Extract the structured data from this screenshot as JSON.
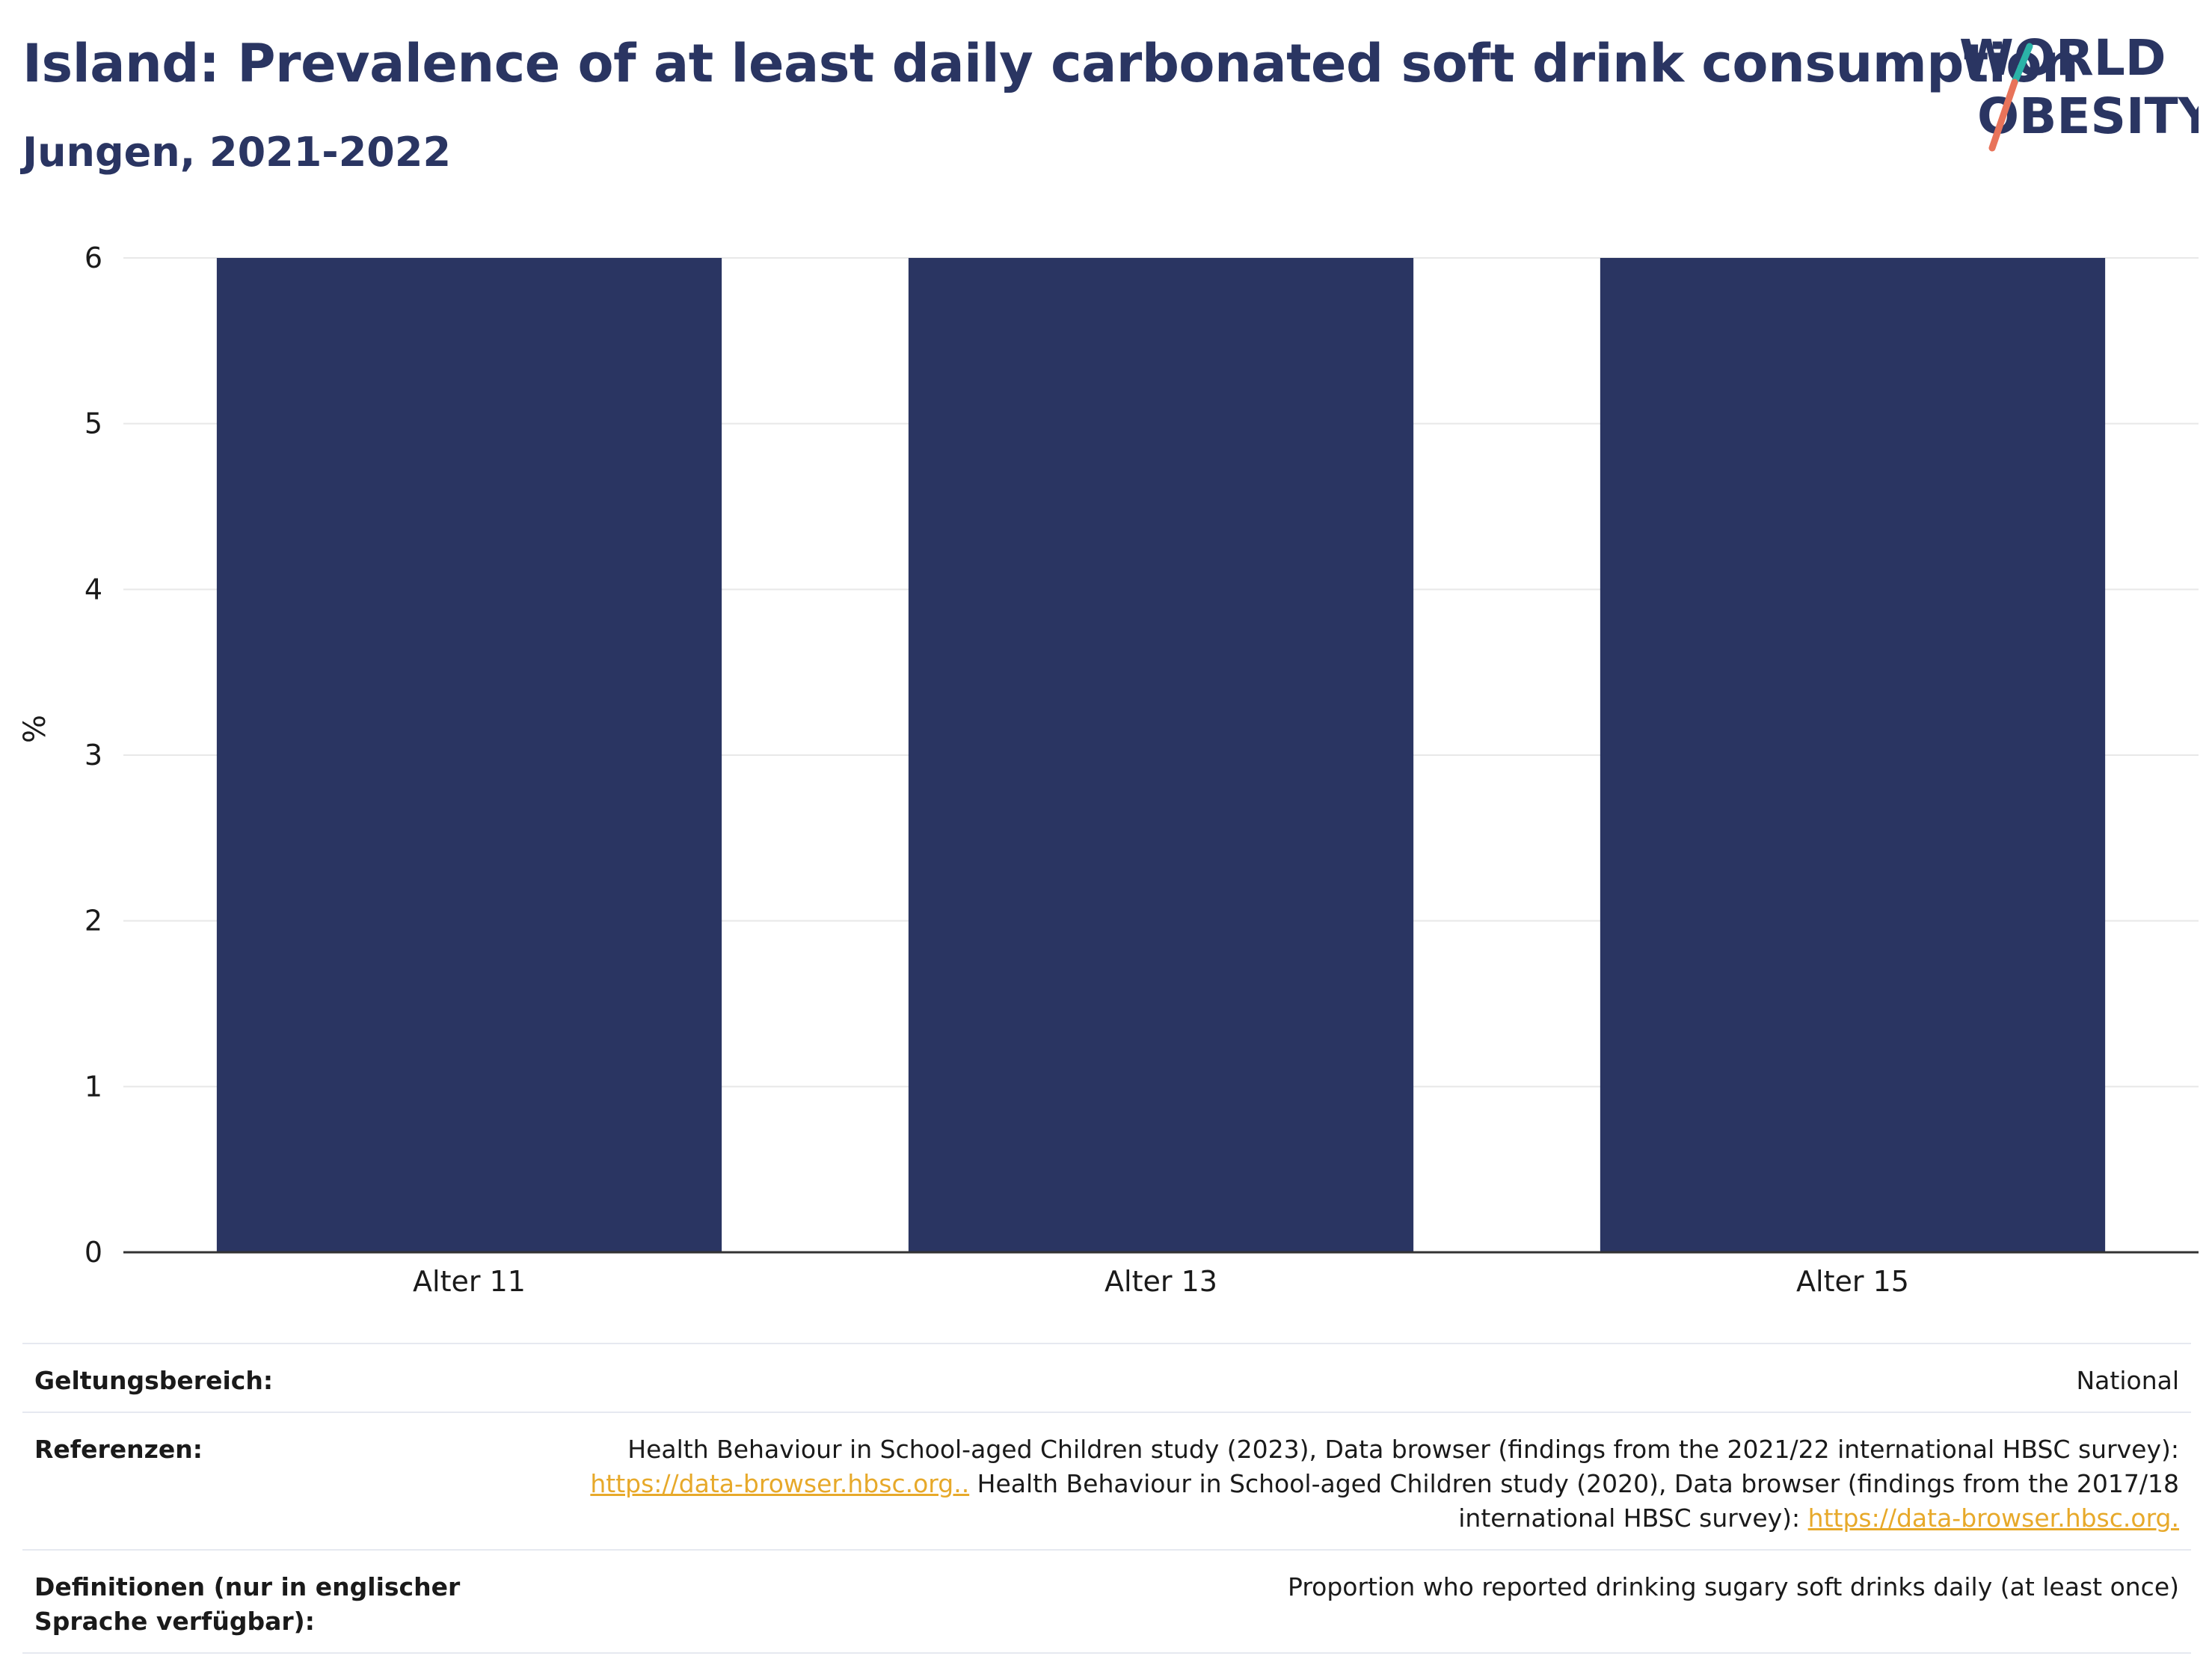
{
  "header": {
    "title": "Island: Prevalence of at least daily carbonated soft drink consumption",
    "subtitle": "Jungen, 2021-2022"
  },
  "logo": {
    "line1": "WORLD",
    "line2": "OBESITY",
    "slash_color_top": "#2bb3a8",
    "slash_color_bottom": "#e8735a"
  },
  "colors": {
    "bar": "#2a3562",
    "grid": "#e8e8e8",
    "axis": "#333333",
    "link": "#e7a92a"
  },
  "chart_data": {
    "type": "bar",
    "categories": [
      "Alter 11",
      "Alter 13",
      "Alter 15"
    ],
    "values": [
      6,
      6,
      6
    ],
    "title": "Island: Prevalence of at least daily carbonated soft drink consumption",
    "subtitle": "Jungen, 2021-2022",
    "xlabel": "",
    "ylabel": "%",
    "ylim": [
      0,
      6
    ],
    "yticks": [
      "0",
      "1",
      "2",
      "3",
      "4",
      "5",
      "6"
    ],
    "grid": true
  },
  "info": {
    "scope": {
      "label": "Geltungsbereich:",
      "value": "National"
    },
    "references": {
      "label": "Referenzen:",
      "part1": "Health Behaviour in School-aged Children study (2023), Data browser (findings from the 2021/22 international HBSC survey):",
      "link1": "https://data-browser.hbsc.org..",
      "part2": " Health Behaviour in School-aged Children study (2020), Data browser (findings from the 2017/18 international HBSC survey): ",
      "link2": "https://data-browser.hbsc.org."
    },
    "definitions": {
      "label": "Definitionen (nur in englischer Sprache verfügbar):",
      "value": "Proportion who reported drinking sugary soft drinks daily (at least once)"
    }
  }
}
